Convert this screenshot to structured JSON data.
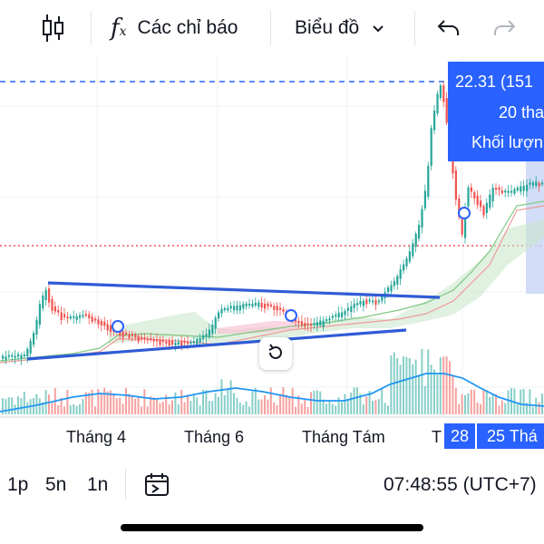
{
  "toolbar": {
    "indicators_label": "Các chỉ báo",
    "chart_type_label": "Biểu đồ",
    "icons": [
      "candlestick-icon",
      "fx-icon",
      "chevron-down-icon",
      "undo-icon",
      "redo-icon"
    ]
  },
  "tooltip": {
    "line1": "22.31 (151",
    "line2": "20 tha",
    "line3": "Khối lượn"
  },
  "time_axis": {
    "labels": [
      "Tháng 4",
      "Tháng 6",
      "Tháng Tám"
    ],
    "partial_label": "T",
    "crosshair_partial": "28",
    "crosshair_date": "25 Thá"
  },
  "bottom_bar": {
    "intervals": [
      "1p",
      "5n",
      "1n"
    ],
    "clock": "07:48:55 (UTC+7)"
  },
  "colors": {
    "accent": "#2962ff",
    "up": "#26a69a",
    "down": "#ef5350",
    "trendline": "#2f5bd6",
    "volume_ma": "#2196f3"
  }
}
